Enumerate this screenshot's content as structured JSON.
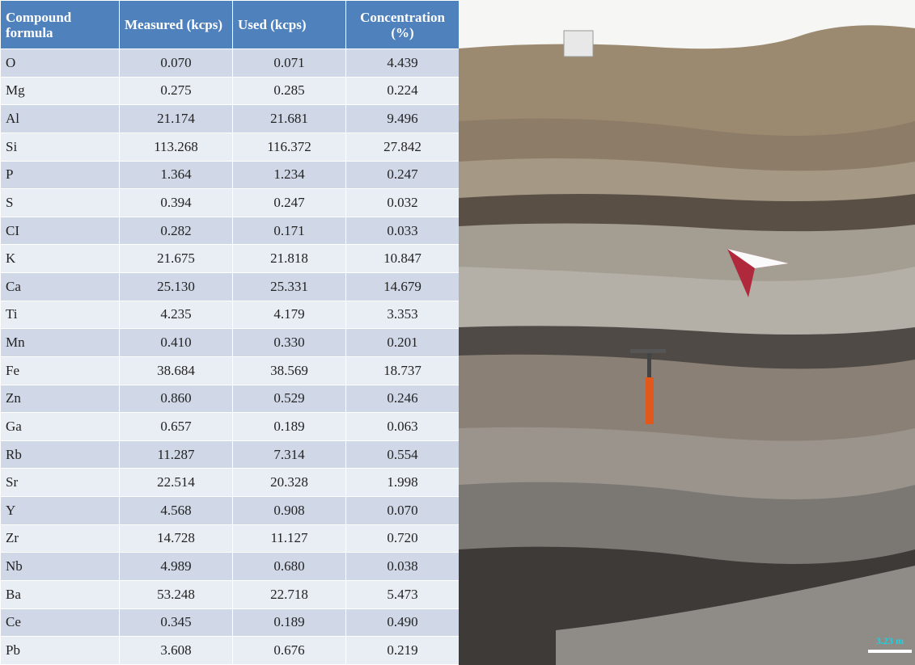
{
  "table": {
    "header": [
      "Compound formula",
      "Measured (kcps)",
      "Used (kcps)",
      "Concentration (%)"
    ],
    "rows": [
      [
        "O",
        "0.070",
        "0.071",
        "4.439"
      ],
      [
        "Mg",
        "0.275",
        "0.285",
        "0.224"
      ],
      [
        "Al",
        "21.174",
        "21.681",
        "9.496"
      ],
      [
        "Si",
        "113.268",
        "116.372",
        "27.842"
      ],
      [
        "P",
        "1.364",
        "1.234",
        "0.247"
      ],
      [
        "S",
        "0.394",
        "0.247",
        "0.032"
      ],
      [
        "CI",
        "0.282",
        "0.171",
        "0.033"
      ],
      [
        "K",
        "21.675",
        "21.818",
        "10.847"
      ],
      [
        "Ca",
        "25.130",
        "25.331",
        "14.679"
      ],
      [
        "Ti",
        "4.235",
        "4.179",
        "3.353"
      ],
      [
        "Mn",
        "0.410",
        "0.330",
        "0.201"
      ],
      [
        "Fe",
        "38.684",
        "38.569",
        "18.737"
      ],
      [
        "Zn",
        "0.860",
        "0.529",
        "0.246"
      ],
      [
        "Ga",
        "0.657",
        "0.189",
        "0.063"
      ],
      [
        "Rb",
        "11.287",
        "7.314",
        "0.554"
      ],
      [
        "Sr",
        "22.514",
        "20.328",
        "1.998"
      ],
      [
        "Y",
        "4.568",
        "0.908",
        "0.070"
      ],
      [
        "Zr",
        "14.728",
        "11.127",
        "0.720"
      ],
      [
        "Nb",
        "4.989",
        "0.680",
        "0.038"
      ],
      [
        "Ba",
        "53.248",
        "22.718",
        "5.473"
      ],
      [
        "Ce",
        "0.345",
        "0.189",
        "0.490"
      ],
      [
        "Pb",
        "3.608",
        "0.676",
        "0.219"
      ]
    ]
  },
  "photo": {
    "scale_label": "3.23 m"
  }
}
